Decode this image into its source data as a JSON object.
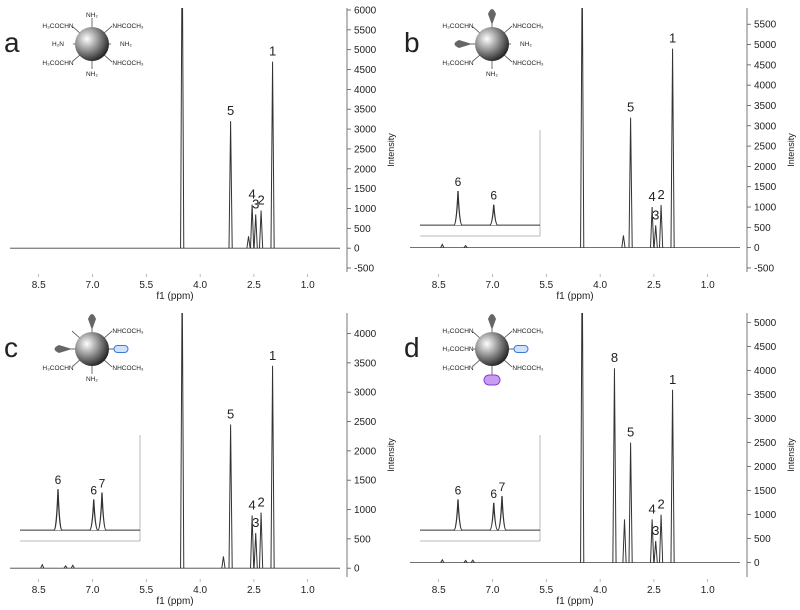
{
  "chart_data": [
    {
      "type": "spectrum",
      "panel": "a",
      "xlabel": "f1 (ppm)",
      "ylabel": "Intensity",
      "xlim": [
        9.3,
        0.1
      ],
      "xticks": [
        8.5,
        {
          "value": 7,
          "label": "7.0"
        },
        5.5,
        {
          "value": 4,
          "label": "4.0"
        },
        2.5,
        {
          "value": 1,
          "label": "1.0"
        }
      ],
      "ylim": [
        -600,
        6050
      ],
      "yticks": [
        -500,
        0,
        500,
        1000,
        1500,
        2000,
        2500,
        3000,
        3500,
        4000,
        4500,
        5000,
        5500,
        6000
      ],
      "structure": [
        "NH₂",
        "H₃COCHN",
        "NHCOCH₃",
        "H₂N",
        "NH₂",
        "H₃COCHN",
        "NH₂",
        "NHCOCH₃"
      ],
      "peaks": [
        {
          "x": 4.5,
          "height": 8000
        },
        {
          "x": 3.15,
          "height": 3200,
          "label": "5"
        },
        {
          "x": 2.65,
          "height": 300
        },
        {
          "x": 2.55,
          "height": 1100,
          "label": "4"
        },
        {
          "x": 2.45,
          "height": 850,
          "label": "3"
        },
        {
          "x": 2.3,
          "height": 950,
          "label": "2"
        },
        {
          "x": 1.98,
          "height": 4700,
          "label": "1"
        }
      ]
    },
    {
      "type": "spectrum",
      "panel": "b",
      "xlabel": "f1 (ppm)",
      "ylabel": "Intensity",
      "xlim": [
        9.3,
        0.1
      ],
      "xticks": [
        8.5,
        {
          "value": 7,
          "label": "7.0"
        },
        5.5,
        {
          "value": 4,
          "label": "4.0"
        },
        2.5,
        {
          "value": 1,
          "label": "1.0"
        }
      ],
      "ylim": [
        -600,
        5900
      ],
      "yticks": [
        -500,
        0,
        500,
        1000,
        1500,
        2000,
        2500,
        3000,
        3500,
        4000,
        4500,
        5000,
        5500
      ],
      "structure": [
        null,
        "H₃COCHN",
        "NHCOCH₃",
        null,
        "NH₂",
        "H₃COCHN",
        "NH₂",
        "NHCOCH₃"
      ],
      "peaks": [
        {
          "x": 8.4,
          "height": 80
        },
        {
          "x": 7.75,
          "height": 50
        },
        {
          "x": 4.5,
          "height": 7000
        },
        {
          "x": 3.35,
          "height": 300
        },
        {
          "x": 3.15,
          "height": 3200,
          "label": "5"
        },
        {
          "x": 2.55,
          "height": 1000,
          "label": "4"
        },
        {
          "x": 2.45,
          "height": 550,
          "label": "3"
        },
        {
          "x": 2.3,
          "height": 1050,
          "label": "2"
        },
        {
          "x": 1.98,
          "height": 4900,
          "label": "1"
        }
      ],
      "inset": {
        "xlim": [
          9.0,
          7.0
        ],
        "ylim": [
          0,
          120
        ],
        "peaks": [
          {
            "x": 8.4,
            "height": 60,
            "label": "6"
          },
          {
            "x": 7.75,
            "height": 40,
            "label": "6"
          }
        ]
      }
    },
    {
      "type": "spectrum",
      "panel": "c",
      "xlabel": "f1 (ppm)",
      "ylabel": "Intensity",
      "xlim": [
        9.3,
        0.1
      ],
      "xticks": [
        8.5,
        {
          "value": 7,
          "label": "7.0"
        },
        5.5,
        {
          "value": 4,
          "label": "4.0"
        },
        2.5,
        {
          "value": 1,
          "label": "1.0"
        }
      ],
      "ylim": [
        -150,
        4350
      ],
      "yticks": [
        0,
        500,
        1000,
        1500,
        2000,
        2500,
        3000,
        3500,
        4000
      ],
      "structure": [
        null,
        null,
        "NHCOCH₃",
        null,
        null,
        "H₃COCHN",
        "NH₂",
        "NHCOCH₃"
      ],
      "peaks": [
        {
          "x": 8.4,
          "height": 60
        },
        {
          "x": 7.75,
          "height": 40
        },
        {
          "x": 7.55,
          "height": 50
        },
        {
          "x": 4.5,
          "height": 5000
        },
        {
          "x": 3.35,
          "height": 200
        },
        {
          "x": 3.15,
          "height": 2450,
          "label": "5"
        },
        {
          "x": 2.55,
          "height": 900,
          "label": "4"
        },
        {
          "x": 2.45,
          "height": 600,
          "label": "3"
        },
        {
          "x": 2.3,
          "height": 950,
          "label": "2"
        },
        {
          "x": 1.98,
          "height": 3450,
          "label": "1"
        }
      ],
      "inset": {
        "xlim": [
          9.0,
          7.0
        ],
        "ylim": [
          0,
          120
        ],
        "peaks": [
          {
            "x": 8.4,
            "height": 70,
            "label": "6"
          },
          {
            "x": 7.75,
            "height": 55,
            "label": "6"
          },
          {
            "x": 7.6,
            "height": 65,
            "label": "7"
          }
        ]
      }
    },
    {
      "type": "spectrum",
      "panel": "d",
      "xlabel": "f1 (ppm)",
      "ylabel": "Intensity",
      "xlim": [
        9.3,
        0.1
      ],
      "xticks": [
        8.5,
        {
          "value": 7,
          "label": "7.0"
        },
        5.5,
        {
          "value": 4,
          "label": "4.0"
        },
        2.5,
        {
          "value": 1,
          "label": "1.0"
        }
      ],
      "ylim": [
        -300,
        5200
      ],
      "yticks": [
        0,
        500,
        1000,
        1500,
        2000,
        2500,
        3000,
        3500,
        4000,
        4500,
        5000
      ],
      "structure": [
        null,
        "H₃COCHN",
        "NHCOCH₃",
        "H₃COCHN",
        null,
        "H₃COCHN",
        null,
        "NHCOCH₃"
      ],
      "peaks": [
        {
          "x": 8.4,
          "height": 60
        },
        {
          "x": 7.75,
          "height": 45
        },
        {
          "x": 7.55,
          "height": 50
        },
        {
          "x": 4.5,
          "height": 6500
        },
        {
          "x": 3.6,
          "height": 4050,
          "label": "8"
        },
        {
          "x": 3.32,
          "height": 900
        },
        {
          "x": 3.15,
          "height": 2500,
          "label": "5"
        },
        {
          "x": 2.55,
          "height": 900,
          "label": "4"
        },
        {
          "x": 2.45,
          "height": 450,
          "label": "3"
        },
        {
          "x": 2.3,
          "height": 1000,
          "label": "2"
        },
        {
          "x": 1.98,
          "height": 3600,
          "label": "1"
        }
      ],
      "inset": {
        "xlim": [
          9.0,
          7.0
        ],
        "ylim": [
          0,
          120
        ],
        "peaks": [
          {
            "x": 8.4,
            "height": 55,
            "label": "6"
          },
          {
            "x": 7.75,
            "height": 50,
            "label": "6"
          },
          {
            "x": 7.6,
            "height": 60,
            "label": "7"
          }
        ]
      }
    }
  ]
}
